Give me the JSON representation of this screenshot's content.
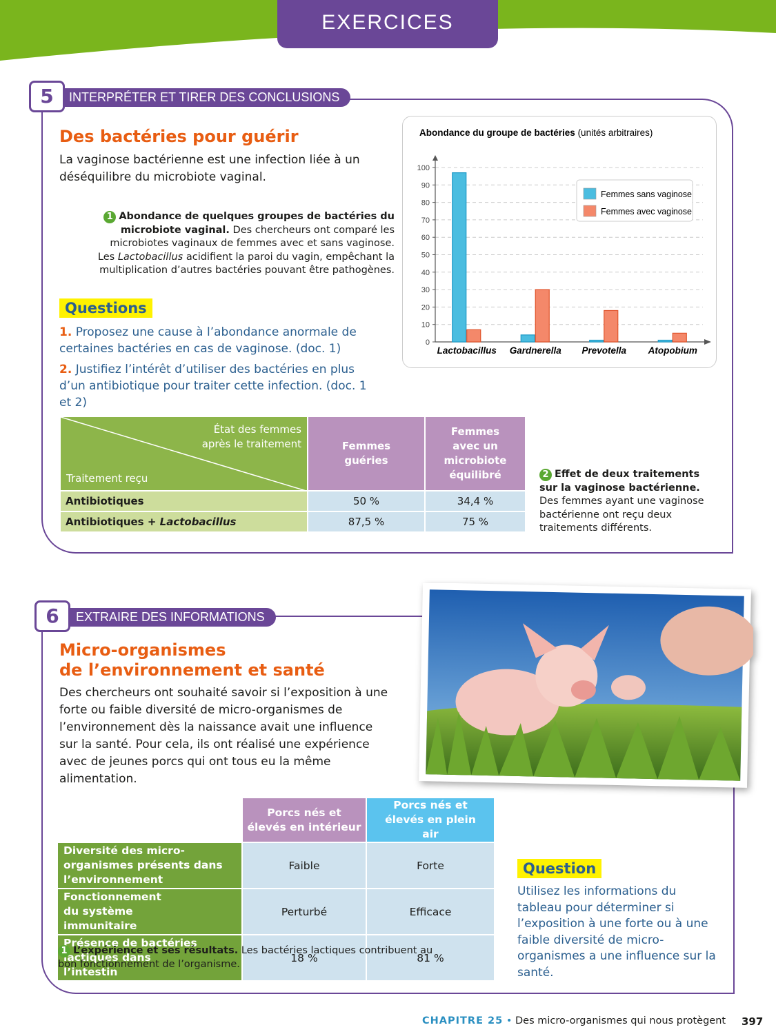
{
  "header": {
    "tab": "EXERCICES"
  },
  "exercise5": {
    "number": "5",
    "skill": "INTERPRÉTER ET TIRER DES CONCLUSIONS",
    "title": "Des bactéries pour guérir",
    "intro": "La vaginose bactérienne est une infection liée à un déséquilibre du microbiote vaginal.",
    "doc1": {
      "number": "1",
      "heading": "Abondance de quelques groupes de bactéries du microbiote vaginal.",
      "text": [
        "Des chercheurs ont comparé les microbiotes vaginaux de femmes avec et sans vaginose. Les ",
        "Lactobacillus",
        " acidifient la paroi du vagin, empêchant la multiplication d’autres bactéries pouvant être pathogènes."
      ]
    },
    "questions_heading": "Questions",
    "questions": [
      {
        "number": "1.",
        "text": "Proposez une cause à l’abondance anormale de certaines bactéries en cas de vaginose. (doc. 1)"
      },
      {
        "number": "2.",
        "text": "Justifiez l’intérêt d’utiliser des bactéries en plus d’un antibiotique pour traiter cette infection. (doc. 1 et 2)"
      }
    ],
    "table": {
      "corner_top": "État des femmes après le traitement",
      "corner_bottom": "Traitement reçu",
      "columns": [
        "Femmes guéries",
        "Femmes avec un microbiote équilibré"
      ],
      "rows": [
        {
          "label": [
            "Antibiotiques"
          ],
          "cells": [
            "50 %",
            "34,4 %"
          ]
        },
        {
          "label": [
            "Antibiotiques + ",
            "Lactobacillus"
          ],
          "cells": [
            "87,5 %",
            "75 %"
          ]
        }
      ]
    },
    "doc2": {
      "number": "2",
      "heading": "Effet de deux traitements sur la vaginose bactérienne.",
      "text": "Des femmes ayant une vaginose bactérienne ont reçu deux traitements différents."
    }
  },
  "chart_data": {
    "type": "bar",
    "title": "Abondance du groupe de bactéries",
    "subtitle": "(unités arbitraires)",
    "categories": [
      "Lactobacillus",
      "Gardnerella",
      "Prevotella",
      "Atopobium"
    ],
    "series": [
      {
        "name": "Femmes sans vaginose",
        "color": "#4bbde0",
        "values": [
          97,
          4,
          1,
          1
        ]
      },
      {
        "name": "Femmes avec vaginose",
        "color": "#f4886a",
        "values": [
          7,
          30,
          18,
          5
        ]
      }
    ],
    "ylim": [
      0,
      100
    ],
    "yticks": [
      0,
      10,
      20,
      30,
      40,
      50,
      60,
      70,
      80,
      90,
      100
    ],
    "grid": true,
    "legend": "top-right"
  },
  "exercise6": {
    "number": "6",
    "skill": "EXTRAIRE DES INFORMATIONS",
    "title": [
      "Micro-organismes",
      "de l’environnement et santé"
    ],
    "intro": "Des chercheurs ont souhaité savoir si l’exposition à une forte ou faible diversité de micro-organismes de l’environnement dès la naissance avait une influence sur la santé. Pour cela, ils ont réalisé une expérience avec de jeunes porcs qui ont tous eu la même alimentation.",
    "table": {
      "columns": [
        "Porcs nés et élevés en intérieur",
        "Porcs nés et élevés en plein air"
      ],
      "rows": [
        {
          "label": "Diversité des micro-organismes présents dans l’environnement",
          "cells": [
            "Faible",
            "Forte"
          ]
        },
        {
          "label": "Fonctionnement du système immunitaire",
          "cells": [
            "Perturbé",
            "Efficace"
          ]
        },
        {
          "label": "Présence de bactéries lactiques dans l’intestin",
          "cells": [
            "18 %",
            "81 %"
          ]
        }
      ]
    },
    "doc1": {
      "number": "1",
      "heading": "L’expérience et ses résultats.",
      "text": "Les bactéries lactiques contribuent au bon fonctionnement de l’organisme."
    },
    "question_heading": "Question",
    "question": "Utilisez les informations du tableau pour déterminer si l’exposition à une forte ou à une faible diversité de micro-organismes a une influence sur la santé."
  },
  "footer": {
    "chapter": "CHAPITRE 25",
    "separator": "•",
    "title": "Des micro-organismes qui nous protègent",
    "page": "397"
  }
}
